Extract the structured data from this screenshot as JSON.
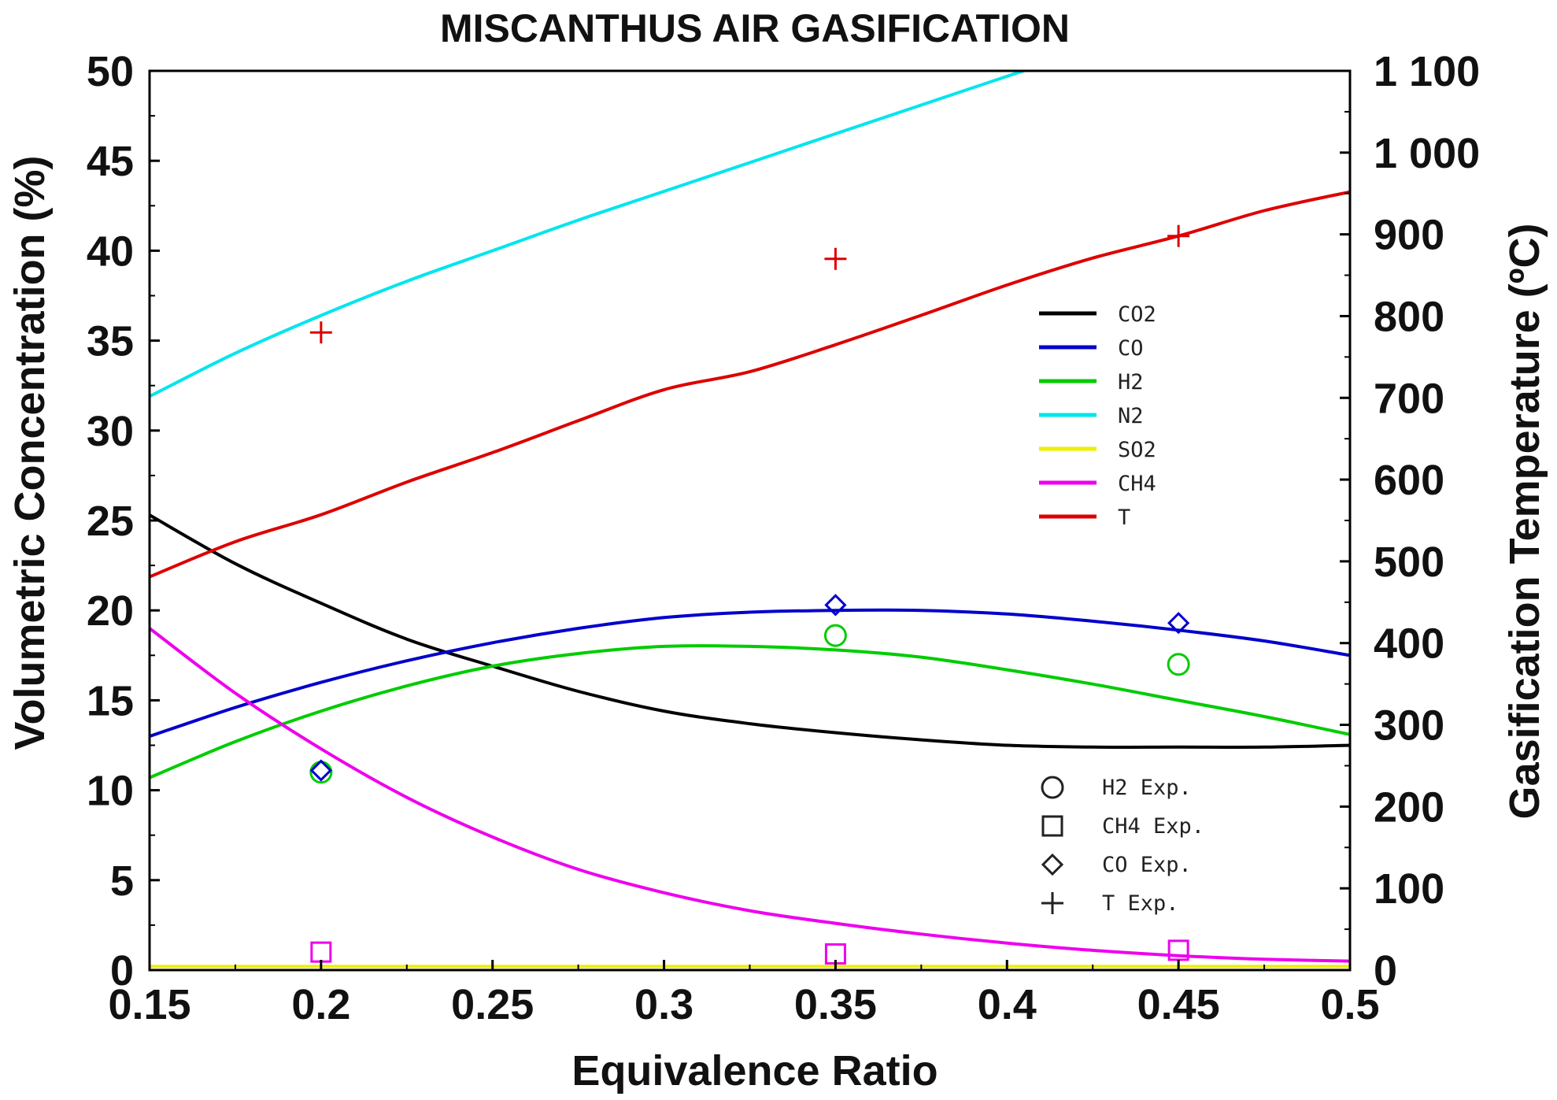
{
  "chart_data": {
    "type": "line",
    "title": "MISCANTHUS AIR GASIFICATION",
    "xlabel": "Equivalence Ratio",
    "ylabel": "Volumetric Concentration (%)",
    "y2label": "Gasification Temperature (ºC)",
    "xlim": [
      0.15,
      0.5
    ],
    "ylim": [
      0,
      50
    ],
    "y2lim": [
      0,
      1100
    ],
    "grid": false,
    "x_ticks": [
      0.15,
      0.2,
      0.25,
      0.3,
      0.35,
      0.4,
      0.45,
      0.5
    ],
    "x_tick_labels": [
      "0.15",
      "0.2",
      "0.25",
      "0.3",
      "0.35",
      "0.4",
      "0.45",
      "0.5"
    ],
    "y_ticks": [
      0,
      5,
      10,
      15,
      20,
      25,
      30,
      35,
      40,
      45,
      50
    ],
    "y_tick_labels": [
      "0",
      "5",
      "10",
      "15",
      "20",
      "25",
      "30",
      "35",
      "40",
      "45",
      "50"
    ],
    "y2_ticks": [
      0,
      100,
      200,
      300,
      400,
      500,
      600,
      700,
      800,
      900,
      1000,
      1100
    ],
    "y2_tick_labels": [
      "0",
      "100",
      "200",
      "300",
      "400",
      "500",
      "600",
      "700",
      "800",
      "900",
      "1 000",
      "1 100"
    ],
    "series": [
      {
        "name": "CO2",
        "color": "#000000",
        "axis": "left",
        "x": [
          0.15,
          0.175,
          0.2,
          0.225,
          0.25,
          0.275,
          0.3,
          0.325,
          0.35,
          0.375,
          0.4,
          0.425,
          0.45,
          0.475,
          0.5
        ],
        "y": [
          25.3,
          22.6,
          20.4,
          18.4,
          16.9,
          15.5,
          14.4,
          13.7,
          13.2,
          12.8,
          12.5,
          12.4,
          12.4,
          12.4,
          12.5
        ]
      },
      {
        "name": "CO",
        "color": "#0000cc",
        "axis": "left",
        "x": [
          0.15,
          0.175,
          0.2,
          0.225,
          0.25,
          0.275,
          0.3,
          0.325,
          0.35,
          0.375,
          0.4,
          0.425,
          0.45,
          0.475,
          0.5
        ],
        "y": [
          13.0,
          14.6,
          16.0,
          17.2,
          18.2,
          19.0,
          19.6,
          19.9,
          20.0,
          20.0,
          19.8,
          19.4,
          18.9,
          18.3,
          17.5
        ]
      },
      {
        "name": "H2",
        "color": "#00cc00",
        "axis": "left",
        "x": [
          0.15,
          0.175,
          0.2,
          0.225,
          0.25,
          0.275,
          0.3,
          0.325,
          0.35,
          0.375,
          0.4,
          0.425,
          0.45,
          0.475,
          0.5
        ],
        "y": [
          10.7,
          12.7,
          14.4,
          15.8,
          16.9,
          17.6,
          18.0,
          18.0,
          17.8,
          17.4,
          16.7,
          15.9,
          15.0,
          14.1,
          13.1
        ]
      },
      {
        "name": "N2",
        "color": "#00e5ee",
        "axis": "left",
        "x": [
          0.15,
          0.175,
          0.2,
          0.225,
          0.25,
          0.275,
          0.3,
          0.325,
          0.35,
          0.375,
          0.4,
          0.405
        ],
        "y": [
          31.9,
          34.3,
          36.4,
          38.3,
          40.0,
          41.7,
          43.3,
          44.9,
          46.5,
          48.1,
          49.7,
          50.0
        ]
      },
      {
        "name": "SO2",
        "color": "#eeee00",
        "axis": "left",
        "x": [
          0.15,
          0.5
        ],
        "y": [
          0.2,
          0.2
        ]
      },
      {
        "name": "CH4",
        "color": "#ee00ee",
        "axis": "left",
        "x": [
          0.15,
          0.175,
          0.2,
          0.225,
          0.25,
          0.275,
          0.3,
          0.325,
          0.35,
          0.375,
          0.4,
          0.425,
          0.45,
          0.475,
          0.5
        ],
        "y": [
          19.0,
          15.4,
          12.3,
          9.6,
          7.4,
          5.6,
          4.3,
          3.3,
          2.6,
          2.0,
          1.5,
          1.1,
          0.8,
          0.6,
          0.5
        ]
      },
      {
        "name": "T",
        "color": "#dd0000",
        "axis": "right",
        "x": [
          0.15,
          0.175,
          0.2,
          0.225,
          0.25,
          0.275,
          0.3,
          0.325,
          0.35,
          0.375,
          0.4,
          0.425,
          0.45,
          0.475,
          0.5
        ],
        "y": [
          481,
          524,
          557,
          597,
          633,
          672,
          710,
          732,
          765,
          801,
          838,
          871,
          898,
          929,
          952
        ]
      }
    ],
    "experimental": [
      {
        "name": "H2 Exp.",
        "marker": "circle",
        "color": "#00cc00",
        "axis": "left",
        "x": [
          0.2,
          0.35,
          0.45
        ],
        "y": [
          11.0,
          18.6,
          17.0
        ]
      },
      {
        "name": "CH4 Exp.",
        "marker": "square",
        "color": "#ee00ee",
        "axis": "left",
        "x": [
          0.2,
          0.35,
          0.45
        ],
        "y": [
          1.0,
          0.9,
          1.1
        ]
      },
      {
        "name": "CO Exp.",
        "marker": "diamond",
        "color": "#0000cc",
        "axis": "left",
        "x": [
          0.2,
          0.35,
          0.45
        ],
        "y": [
          11.1,
          20.3,
          19.3
        ]
      },
      {
        "name": "T Exp.",
        "marker": "plus",
        "color": "#dd0000",
        "axis": "right",
        "x": [
          0.2,
          0.35,
          0.45
        ],
        "y": [
          780,
          870,
          898
        ]
      }
    ],
    "legend_lines": [
      "CO2",
      "CO",
      "H2",
      "N2",
      "SO2",
      "CH4",
      "T"
    ],
    "legend_markers": [
      "H2 Exp.",
      "CH4 Exp.",
      "CO Exp.",
      "T Exp."
    ],
    "legend_placement": "right"
  }
}
